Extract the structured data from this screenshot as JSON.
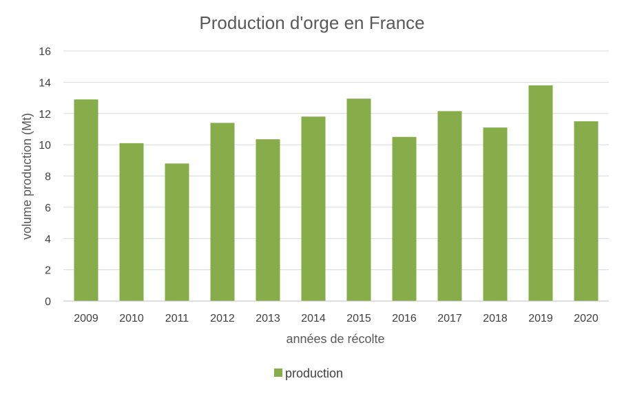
{
  "chart_data": {
    "type": "bar",
    "title": "Production d'orge en France",
    "xlabel": "années de récolte",
    "ylabel": "volume production (Mt)",
    "categories": [
      "2009",
      "2010",
      "2011",
      "2012",
      "2013",
      "2014",
      "2015",
      "2016",
      "2017",
      "2018",
      "2019",
      "2020"
    ],
    "series": [
      {
        "name": "production",
        "color": "#86ad4a",
        "values": [
          12.9,
          10.1,
          8.8,
          11.4,
          10.35,
          11.8,
          12.95,
          10.5,
          12.15,
          11.1,
          13.8,
          11.5
        ]
      }
    ],
    "ylim": [
      0,
      16
    ],
    "yticks": [
      0,
      2,
      4,
      6,
      8,
      10,
      12,
      14,
      16
    ],
    "grid": true,
    "legend_position": "bottom"
  }
}
